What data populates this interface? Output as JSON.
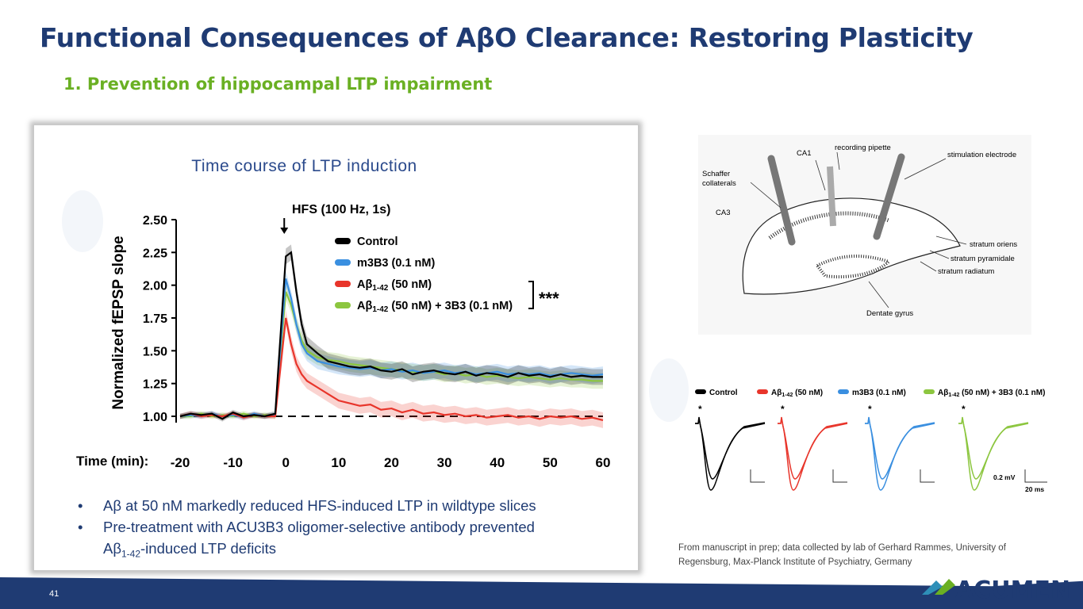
{
  "slide": {
    "title": "Functional Consequences of AβO Clearance: Restoring Plasticity",
    "subtitle": "1. Prevention of hippocampal LTP impairment",
    "page_number": "41",
    "credit": "From manuscript in prep; data collected by lab of Gerhard Rammes, University of Regensburg, Max-Planck Institute of Psychiatry, Germany",
    "logo_text": "ACUMEN",
    "bullets": {
      "b1": "Aβ at 50 nM markedly reduced HFS-induced LTP in wildtype slices",
      "b2_line1": "Pre-treatment with ACU3B3 oligomer-selective antibody prevented",
      "b2_line2_pre": "Aβ",
      "b2_line2_sub": "1-42",
      "b2_line2_post": "-induced LTP deficits",
      "marker": "•"
    }
  },
  "chart_data": {
    "type": "line",
    "title": "Time course of LTP induction",
    "xlabel": "Time (min):",
    "ylabel": "Normalized fEPSP slope",
    "xlim": [
      -20,
      60
    ],
    "ylim": [
      0.9,
      2.5
    ],
    "xticks": [
      "-20",
      "-10",
      "0",
      "10",
      "20",
      "30",
      "40",
      "50",
      "60"
    ],
    "yticks": [
      "2.50",
      "2.25",
      "2.00",
      "1.75",
      "1.50",
      "1.25",
      "1.00"
    ],
    "baseline": 1.0,
    "annotation": "HFS (100 Hz, 1s)",
    "significance": "***",
    "legend_position": "top-right",
    "series": [
      {
        "name": "Control",
        "color": "#000000",
        "x": [
          -20,
          -18,
          -16,
          -14,
          -12,
          -10,
          -8,
          -6,
          -4,
          -2,
          0,
          1,
          2,
          3,
          4,
          6,
          8,
          10,
          12,
          14,
          16,
          18,
          20,
          22,
          24,
          26,
          28,
          30,
          32,
          34,
          36,
          38,
          40,
          42,
          44,
          46,
          48,
          50,
          52,
          54,
          56,
          58,
          60
        ],
        "y": [
          1.0,
          1.02,
          1.01,
          1.02,
          0.98,
          1.03,
          1.0,
          1.01,
          1.0,
          1.02,
          2.22,
          2.25,
          1.95,
          1.7,
          1.55,
          1.48,
          1.42,
          1.4,
          1.38,
          1.37,
          1.38,
          1.35,
          1.34,
          1.36,
          1.32,
          1.34,
          1.35,
          1.33,
          1.32,
          1.34,
          1.31,
          1.33,
          1.32,
          1.3,
          1.33,
          1.31,
          1.32,
          1.3,
          1.32,
          1.3,
          1.31,
          1.3,
          1.3
        ]
      },
      {
        "name": "m3B3 (0.1 nM)",
        "color": "#3a8fe0",
        "x": [
          -20,
          -18,
          -16,
          -14,
          -12,
          -10,
          -8,
          -6,
          -4,
          -2,
          0,
          1,
          2,
          3,
          4,
          6,
          8,
          10,
          12,
          14,
          16,
          18,
          20,
          22,
          24,
          26,
          28,
          30,
          32,
          34,
          36,
          38,
          40,
          42,
          44,
          46,
          48,
          50,
          52,
          54,
          56,
          58,
          60
        ],
        "y": [
          1.0,
          1.01,
          1.0,
          1.02,
          1.0,
          1.01,
          0.99,
          1.02,
          1.0,
          1.01,
          2.05,
          1.9,
          1.7,
          1.55,
          1.48,
          1.42,
          1.4,
          1.38,
          1.37,
          1.36,
          1.37,
          1.35,
          1.36,
          1.34,
          1.35,
          1.33,
          1.34,
          1.35,
          1.33,
          1.34,
          1.32,
          1.33,
          1.34,
          1.32,
          1.33,
          1.32,
          1.33,
          1.31,
          1.32,
          1.33,
          1.32,
          1.31,
          1.32
        ]
      },
      {
        "name": "Aβ1-42 (50 nM)",
        "color": "#e8352b",
        "x": [
          -20,
          -18,
          -16,
          -14,
          -12,
          -10,
          -8,
          -6,
          -4,
          -2,
          0,
          1,
          2,
          3,
          4,
          6,
          8,
          10,
          12,
          14,
          16,
          18,
          20,
          22,
          24,
          26,
          28,
          30,
          32,
          34,
          36,
          38,
          40,
          42,
          44,
          46,
          48,
          50,
          52,
          54,
          56,
          58,
          60
        ],
        "y": [
          1.0,
          1.02,
          1.0,
          1.01,
          1.0,
          1.02,
          0.99,
          1.01,
          1.0,
          1.0,
          1.75,
          1.55,
          1.4,
          1.32,
          1.27,
          1.22,
          1.17,
          1.12,
          1.1,
          1.08,
          1.09,
          1.05,
          1.06,
          1.03,
          1.05,
          1.02,
          1.03,
          1.01,
          1.02,
          1.0,
          1.01,
          0.99,
          1.0,
          1.01,
          0.99,
          1.0,
          0.98,
          1.0,
          0.99,
          1.0,
          0.98,
          0.99,
          0.97
        ]
      },
      {
        "name": "Aβ1-42 (50 nM) + 3B3 (0.1 nM)",
        "color": "#8cc63f",
        "x": [
          -20,
          -18,
          -16,
          -14,
          -12,
          -10,
          -8,
          -6,
          -4,
          -2,
          0,
          1,
          2,
          3,
          4,
          6,
          8,
          10,
          12,
          14,
          16,
          18,
          20,
          22,
          24,
          26,
          28,
          30,
          32,
          34,
          36,
          38,
          40,
          42,
          44,
          46,
          48,
          50,
          52,
          54,
          56,
          58,
          60
        ],
        "y": [
          1.0,
          1.0,
          1.02,
          1.0,
          1.01,
          1.0,
          1.02,
          1.0,
          1.01,
          1.0,
          1.95,
          1.85,
          1.7,
          1.58,
          1.5,
          1.45,
          1.43,
          1.42,
          1.4,
          1.39,
          1.38,
          1.37,
          1.36,
          1.35,
          1.34,
          1.33,
          1.34,
          1.32,
          1.33,
          1.31,
          1.32,
          1.3,
          1.31,
          1.3,
          1.29,
          1.3,
          1.29,
          1.28,
          1.29,
          1.28,
          1.28,
          1.27,
          1.27
        ]
      }
    ]
  },
  "hippocampus": {
    "labels": {
      "ca1": "CA1",
      "recording_pipette": "recording pipette",
      "stimulation_electrode": "stimulation electrode",
      "schaffer": "Schaffer",
      "collaterals": "collaterals",
      "ca3": "CA3",
      "stratum_oriens": "stratum oriens",
      "stratum_pyramidale": "stratum pyramidale",
      "stratum_radiatum": "stratum radiatum",
      "dentate_gyrus": "Dentate gyrus"
    }
  },
  "traces": {
    "legend": [
      {
        "label_pre": "Control",
        "sub": "",
        "label_post": "",
        "color": "#000000"
      },
      {
        "label_pre": "Aβ",
        "sub": "1-42",
        "label_post": " (50 nM)",
        "color": "#e8352b"
      },
      {
        "label_pre": "m3B3 (0.1 nM)",
        "sub": "",
        "label_post": "",
        "color": "#3a8fe0"
      },
      {
        "label_pre": "Aβ",
        "sub": "1-42",
        "label_post": " (50 nM) + 3B3 (0.1 nM)",
        "color": "#8cc63f"
      }
    ],
    "stim_marker": "*",
    "scale_voltage": "0.2 mV",
    "scale_time": "20 ms"
  }
}
